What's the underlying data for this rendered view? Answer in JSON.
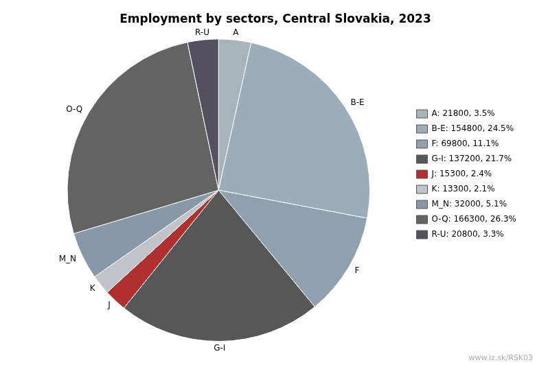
{
  "chart_data": {
    "type": "pie",
    "title": "Employment by sectors, Central Slovakia, 2023",
    "annotation": "www.iz.sk/RSK03",
    "categories": [
      "A",
      "B-E",
      "F",
      "G-I",
      "J",
      "K",
      "M_N",
      "O-Q",
      "R-U"
    ],
    "values": [
      21800,
      154800,
      69800,
      137200,
      15300,
      13300,
      32000,
      166300,
      20800
    ],
    "legend_labels": [
      "A: 21800, 3.5%",
      "B-E: 154800, 24.5%",
      "F: 69800, 11.1%",
      "G-I: 137200, 21.7%",
      "J: 15300, 2.4%",
      "K: 13300, 2.1%",
      "M_N: 32000, 5.1%",
      "O-Q: 166300, 26.3%",
      "R-U: 20800, 3.3%"
    ],
    "colors": [
      "#a8b4bc",
      "#9badb8",
      "#8fa0ae",
      "#575757",
      "#b03030",
      "#c0c4c8",
      "#8898a8",
      "#636363",
      "#555060"
    ],
    "legend": "right"
  }
}
